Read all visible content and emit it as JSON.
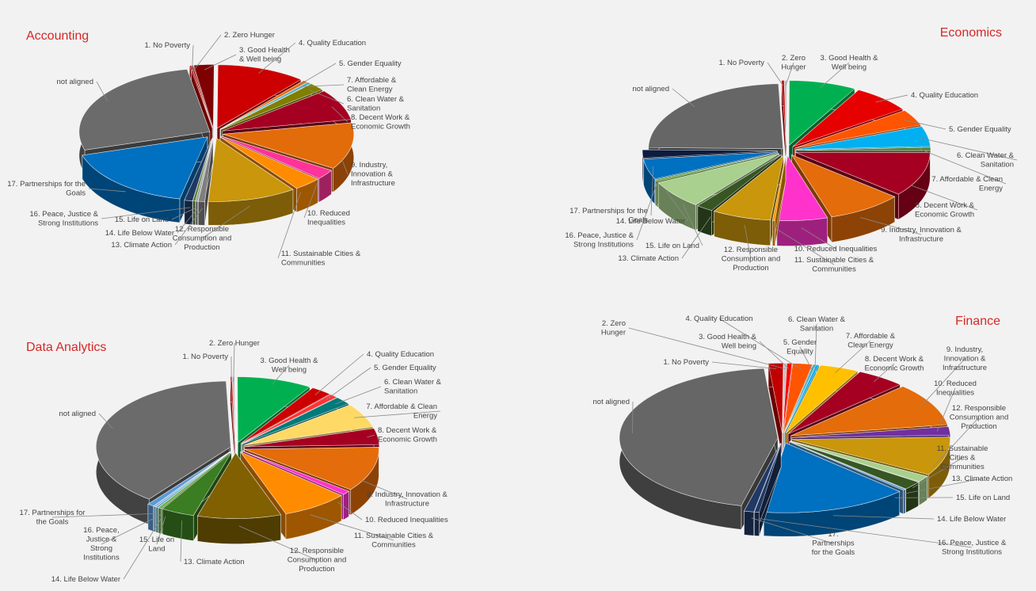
{
  "chart_data": [
    {
      "type": "pie",
      "title": "Accounting",
      "categories": [
        "1. No Poverty",
        "2. Zero Hunger",
        "3. Good Health & Well being",
        "4. Quality Education",
        "5. Gender Equality",
        "7. Affordable & Clean Energy",
        "6. Clean Water & Sanitation",
        "8. Decent Work & Economic Growth",
        "9. Industry, Innovation & Infrastructure",
        "10. Reduced Inequalities",
        "11. Sustainable Cities & Communities",
        "12. Responsible Consumption and Production",
        "13. Climate Action",
        "14. Life Below Water",
        "15. Life on Land",
        "16. Peace, Justice & Strong Institutions",
        "17. Partnerships for the Goals",
        "not aligned"
      ],
      "values": [
        0.2,
        0.2,
        2.5,
        11.0,
        0.6,
        0.5,
        2.0,
        8.0,
        12.0,
        2.5,
        3.5,
        11.0,
        0.8,
        0.3,
        0.3,
        1.0,
        17.0,
        27.0
      ],
      "colors": [
        "#c00000",
        "#8b0000",
        "#7f0000",
        "#cc0000",
        "#e36c09",
        "#4bacc6",
        "#7f7f00",
        "#a50021",
        "#e26b0a",
        "#ff3399",
        "#ff8c00",
        "#c9960c",
        "#7f7f7f",
        "#9e9e9e",
        "#4e7d2b",
        "#1f3864",
        "#0070c0",
        "#6b6b6b"
      ]
    },
    {
      "type": "pie",
      "title": "Economics",
      "categories": [
        "1. No Poverty",
        "2. Zero Hunger",
        "3. Good Health & Well being",
        "4. Quality Education",
        "5. Gender Equality",
        "6. Clean Water & Sanitation",
        "7. Affordable & Clean Energy",
        "8. Decent Work & Economic Growth",
        "9. Industry, Innovation & Infrastructure",
        "10. Reduced Inequalities",
        "11. Sustainable Cities & Communities",
        "12. Responsible Consumption and Production",
        "13. Climate Action",
        "15. Life on Land",
        "14. Life Below Water",
        "16. Peace, Justice & Strong Institutions",
        "17. Partnerships for the Goals",
        "not aligned"
      ],
      "values": [
        0.3,
        0.3,
        8.0,
        7.0,
        4.0,
        5.0,
        0.8,
        11.0,
        9.0,
        6.0,
        0.3,
        7.0,
        2.0,
        7.0,
        0.5,
        5.0,
        2.0,
        24.0
      ],
      "colors": [
        "#c00000",
        "#bfbfbf",
        "#00b050",
        "#e60000",
        "#ff5500",
        "#00b0f0",
        "#538135",
        "#a50021",
        "#e46c0a",
        "#ff33cc",
        "#ff9900",
        "#c9960c",
        "#375623",
        "#a9d08e",
        "#70ad47",
        "#0070c0",
        "#0d1b3e",
        "#666666"
      ]
    },
    {
      "type": "pie",
      "title": "Data Analytics",
      "categories": [
        "1. No Poverty",
        "2. Zero Hunger",
        "3. Good Health & Well being",
        "4. Quality Education",
        "5. Gender Equality",
        "6. Clean Water & Sanitation",
        "7. Affordable & Clean Energy",
        "8. Decent Work & Economic Growth",
        "9. Industry, Innovation & Infrastructure",
        "10. Reduced Inequalities",
        "11. Sustainable Cities & Communities",
        "12. Responsible Consumption and Production",
        "13. Climate Action",
        "15. Life on Land",
        "14. Life Below Water",
        "16. Peace, Justice & Strong Institutions",
        "17. Partnerships for the Goals",
        "not aligned"
      ],
      "values": [
        0.2,
        0.3,
        9.0,
        2.5,
        1.0,
        2.0,
        6.0,
        4.0,
        11.0,
        1.0,
        8.0,
        10.0,
        4.0,
        0.4,
        0.3,
        0.3,
        0.8,
        39.0
      ],
      "colors": [
        "#c00000",
        "#bfbfbf",
        "#00b050",
        "#cc0000",
        "#ff3333",
        "#007a7a",
        "#ffd966",
        "#a50021",
        "#e46c0a",
        "#ff33cc",
        "#ff8c00",
        "#806000",
        "#3a7d22",
        "#70ad47",
        "#4bacc6",
        "#8ea9db",
        "#5b9bd5",
        "#6b6b6b"
      ]
    },
    {
      "type": "pie",
      "title": "Finance",
      "categories": [
        "1. No Poverty",
        "2. Zero Hunger",
        "3. Good Health & Well being",
        "4. Quality Education",
        "5. Gender Equality",
        "6. Clean Water & Sanitation",
        "7. Affordable & Clean Energy",
        "8. Decent Work & Economic Growth",
        "9. Industry, Innovation & Infrastructure",
        "10. Reduced Inequalities",
        "12. Responsible Consumption and Production",
        "11. Sustainable Cities & Communities",
        "13. Climate Action",
        "15. Life on Land",
        "14. Life Below Water",
        "16. Peace, Justice & Strong Institutions",
        "17. Partnerships for the Goals",
        "not aligned"
      ],
      "values": [
        1.5,
        0.3,
        0.5,
        2.0,
        0.3,
        0.3,
        4.0,
        5.0,
        10.0,
        2.0,
        9.0,
        1.5,
        2.0,
        0.3,
        15.0,
        0.5,
        1.0,
        45.0
      ],
      "colors": [
        "#c00000",
        "#bfbfbf",
        "#ff0000",
        "#ff5500",
        "#4bacc6",
        "#00b0f0",
        "#ffc000",
        "#a50021",
        "#e46c0a",
        "#7030a0",
        "#c9960c",
        "#a9d08e",
        "#375623",
        "#5b9bd5",
        "#0070c0",
        "#1f3864",
        "#203864",
        "#666666"
      ]
    }
  ]
}
